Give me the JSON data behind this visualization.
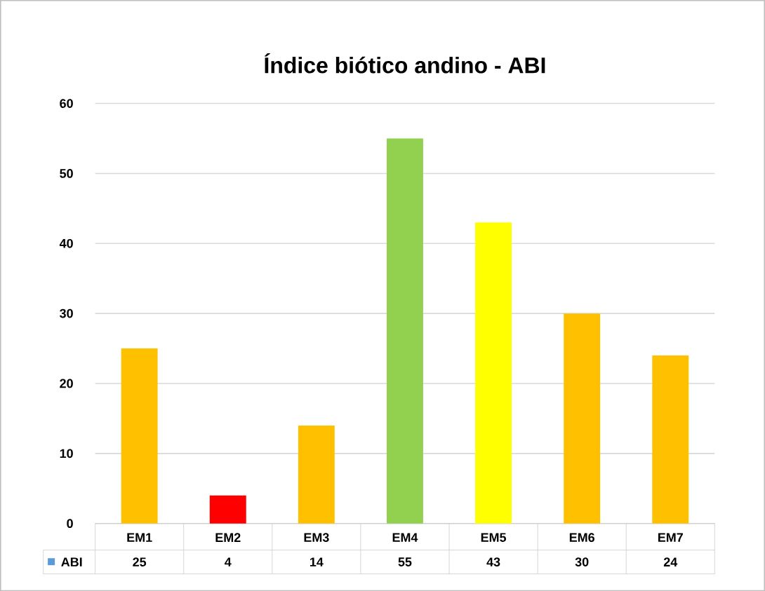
{
  "chart_data": {
    "type": "bar",
    "title": "Índice biótico andino - ABI",
    "categories": [
      "EM1",
      "EM2",
      "EM3",
      "EM4",
      "EM5",
      "EM6",
      "EM7"
    ],
    "series": [
      {
        "name": "ABI",
        "color": "#5b9bd5",
        "colors": [
          "#ffc000",
          "#ff0000",
          "#ffc000",
          "#92d050",
          "#ffff00",
          "#ffc000",
          "#ffc000"
        ],
        "values": [
          25,
          4,
          14,
          55,
          43,
          30,
          24
        ]
      }
    ],
    "ylim": [
      0,
      60
    ],
    "yticks": [
      0,
      10,
      20,
      30,
      40,
      50,
      60
    ],
    "grid": "y",
    "legend": "bottom",
    "data_labels": true
  }
}
